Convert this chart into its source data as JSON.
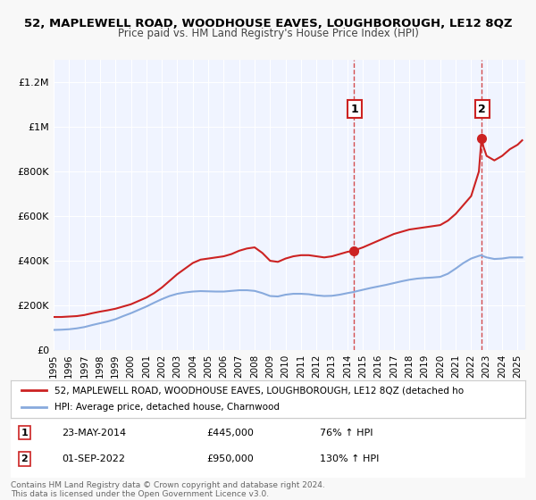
{
  "title": "52, MAPLEWELL ROAD, WOODHOUSE EAVES, LOUGHBOROUGH, LE12 8QZ",
  "subtitle": "Price paid vs. HM Land Registry's House Price Index (HPI)",
  "background_color": "#f0f4ff",
  "plot_bg_color": "#f0f4ff",
  "ylabel": "",
  "ylim": [
    0,
    1300000
  ],
  "yticks": [
    0,
    200000,
    400000,
    600000,
    800000,
    1000000,
    1200000
  ],
  "ytick_labels": [
    "£0",
    "£200K",
    "£400K",
    "£600K",
    "£800K",
    "£1M",
    "£1.2M"
  ],
  "xlim_start": 1995.0,
  "xlim_end": 2025.5,
  "xticks": [
    1995,
    1996,
    1997,
    1998,
    1999,
    2000,
    2001,
    2002,
    2003,
    2004,
    2005,
    2006,
    2007,
    2008,
    2009,
    2010,
    2011,
    2012,
    2013,
    2014,
    2015,
    2016,
    2017,
    2018,
    2019,
    2020,
    2021,
    2022,
    2023,
    2024,
    2025
  ],
  "red_line_color": "#cc2222",
  "blue_line_color": "#88aadd",
  "dashed_line_color": "#cc2222",
  "marker1_x": 2014.4,
  "marker1_y": 445000,
  "marker2_x": 2022.67,
  "marker2_y": 950000,
  "annotation1_label": "1",
  "annotation2_label": "2",
  "legend_red": "52, MAPLEWELL ROAD, WOODHOUSE EAVES, LOUGHBOROUGH, LE12 8QZ (detached ho",
  "legend_blue": "HPI: Average price, detached house, Charnwood",
  "info1_num": "1",
  "info1_date": "23-MAY-2014",
  "info1_price": "£445,000",
  "info1_hpi": "76% ↑ HPI",
  "info2_num": "2",
  "info2_date": "01-SEP-2022",
  "info2_price": "£950,000",
  "info2_hpi": "130% ↑ HPI",
  "footer": "Contains HM Land Registry data © Crown copyright and database right 2024.\nThis data is licensed under the Open Government Licence v3.0."
}
